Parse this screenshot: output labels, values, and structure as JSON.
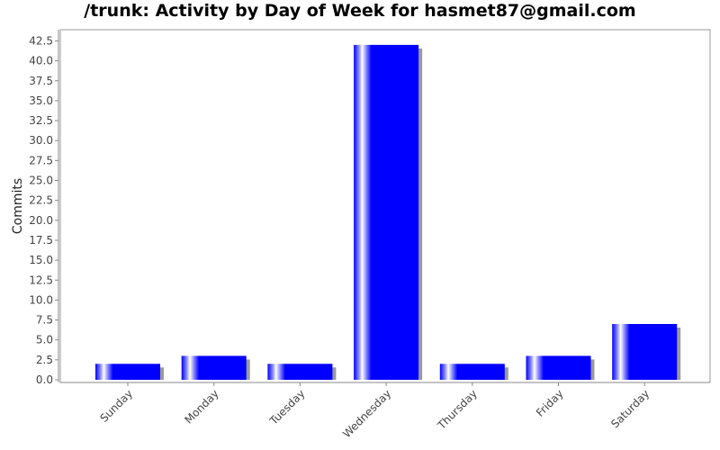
{
  "chart_data": {
    "type": "bar",
    "title": "/trunk: Activity by Day of Week for hasmet87@gmail.com",
    "xlabel": "",
    "ylabel": "Commits",
    "categories": [
      "Sunday",
      "Monday",
      "Tuesday",
      "Wednesday",
      "Thursday",
      "Friday",
      "Saturday"
    ],
    "values": [
      2,
      3,
      2,
      42,
      2,
      3,
      7
    ],
    "ylim": [
      0,
      44
    ],
    "yticks": [
      "0.0",
      "2.5",
      "5.0",
      "7.5",
      "10.0",
      "12.5",
      "15.0",
      "17.5",
      "20.0",
      "22.5",
      "25.0",
      "27.5",
      "30.0",
      "32.5",
      "35.0",
      "37.5",
      "40.0",
      "42.5"
    ],
    "grid": false,
    "legend": "none",
    "colors": {
      "bar": "#0000ff",
      "highlight": "#ffffff",
      "shadow": "#999999",
      "axis": "#888888",
      "frame": "#999999"
    }
  }
}
